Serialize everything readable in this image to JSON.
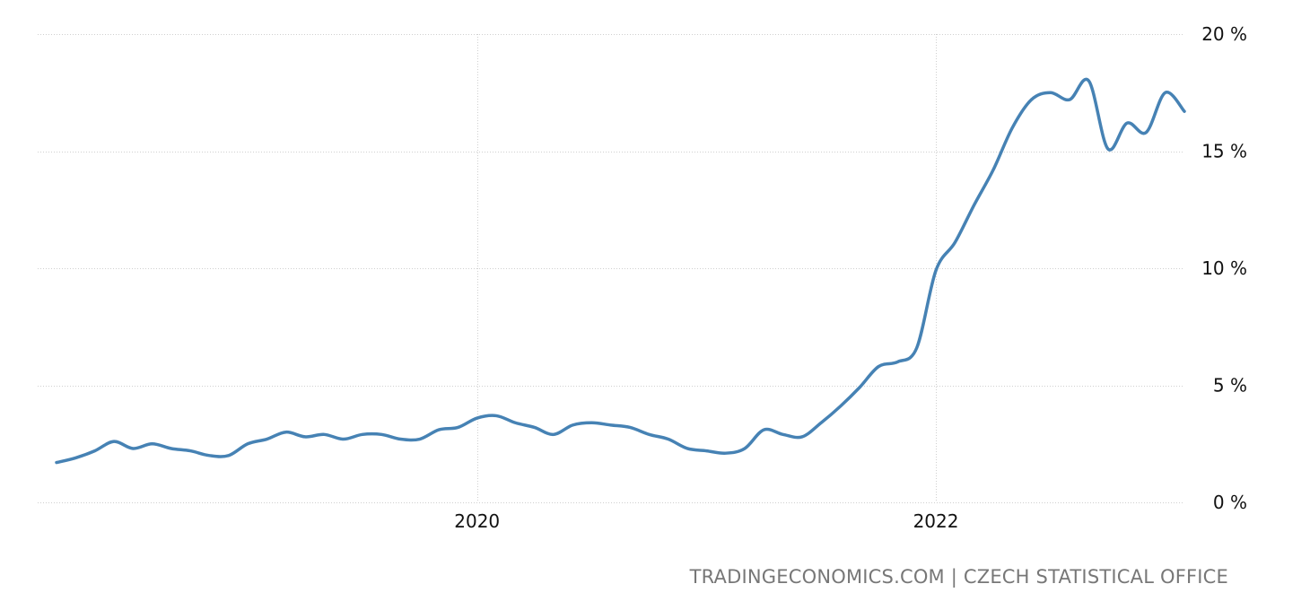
{
  "chart_data": {
    "type": "line",
    "title": "",
    "xlabel": "",
    "ylabel": "",
    "y_tick_labels": [
      "0 %",
      "5 %",
      "10 %",
      "15 %",
      "20 %"
    ],
    "y_tick_values": [
      0,
      5,
      10,
      15,
      20
    ],
    "x_tick_labels": [
      "2020",
      "2022"
    ],
    "x_tick_values": [
      "2020-01",
      "2022-01"
    ],
    "ylim": [
      0,
      20
    ],
    "xlim": [
      "2018-03",
      "2023-02"
    ],
    "y_axis_position": "right",
    "grid": true,
    "legend": "none",
    "series": [
      {
        "color": "#4682b4",
        "x": [
          "2018-03",
          "2018-04",
          "2018-05",
          "2018-06",
          "2018-07",
          "2018-08",
          "2018-09",
          "2018-10",
          "2018-11",
          "2018-12",
          "2019-01",
          "2019-02",
          "2019-03",
          "2019-04",
          "2019-05",
          "2019-06",
          "2019-07",
          "2019-08",
          "2019-09",
          "2019-10",
          "2019-11",
          "2019-12",
          "2020-01",
          "2020-02",
          "2020-03",
          "2020-04",
          "2020-05",
          "2020-06",
          "2020-07",
          "2020-08",
          "2020-09",
          "2020-10",
          "2020-11",
          "2020-12",
          "2021-01",
          "2021-02",
          "2021-03",
          "2021-04",
          "2021-05",
          "2021-06",
          "2021-07",
          "2021-08",
          "2021-09",
          "2021-10",
          "2021-11",
          "2021-12",
          "2022-01",
          "2022-02",
          "2022-03",
          "2022-04",
          "2022-05",
          "2022-06",
          "2022-07",
          "2022-08",
          "2022-09",
          "2022-10",
          "2022-11",
          "2022-12",
          "2023-01",
          "2023-02"
        ],
        "values": [
          1.7,
          1.9,
          2.2,
          2.6,
          2.3,
          2.5,
          2.3,
          2.2,
          2.0,
          2.0,
          2.5,
          2.7,
          3.0,
          2.8,
          2.9,
          2.7,
          2.9,
          2.9,
          2.7,
          2.7,
          3.1,
          3.2,
          3.6,
          3.7,
          3.4,
          3.2,
          2.9,
          3.3,
          3.4,
          3.3,
          3.2,
          2.9,
          2.7,
          2.3,
          2.2,
          2.1,
          2.3,
          3.1,
          2.9,
          2.8,
          3.4,
          4.1,
          4.9,
          5.8,
          6.0,
          6.6,
          9.9,
          11.1,
          12.7,
          14.2,
          16.0,
          17.2,
          17.5,
          17.2,
          18.0,
          15.1,
          16.2,
          15.8,
          17.5,
          16.7
        ]
      }
    ],
    "source": "TRADINGECONOMICS.COM | CZECH STATISTICAL OFFICE"
  }
}
